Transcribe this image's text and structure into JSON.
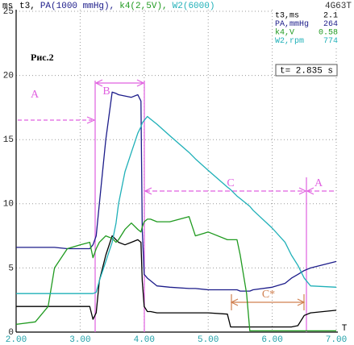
{
  "chart_data": {
    "type": "line",
    "y_label": "ms",
    "x_label": "T",
    "model": "4G63T",
    "figure_label": "Рис.2",
    "cursor": "t= 2.835 s",
    "annotations": [
      "A",
      "B",
      "C",
      "A",
      "C*"
    ],
    "readout": [
      {
        "label": "t3,ms",
        "value": 2.1
      },
      {
        "label": "PA,mmHg",
        "value": 264
      },
      {
        "label": "k4,V",
        "value": 0.58
      },
      {
        "label": "W2,rpm",
        "value": 774
      }
    ],
    "x": [
      2.0,
      2.3,
      2.5,
      2.6,
      2.8,
      3.0,
      3.15,
      3.2,
      3.25,
      3.3,
      3.4,
      3.5,
      3.56,
      3.6,
      3.7,
      3.8,
      3.9,
      3.95,
      3.97,
      4.0,
      4.05,
      4.1,
      4.2,
      4.4,
      4.7,
      4.8,
      5.0,
      5.3,
      5.35,
      5.45,
      5.5,
      5.6,
      5.65,
      5.7,
      6.0,
      6.2,
      6.3,
      6.4,
      6.5,
      6.6,
      7.0
    ],
    "series": [
      {
        "name": "t3,",
        "color": "#000000",
        "values": [
          2.0,
          2.0,
          2.0,
          2.0,
          2.0,
          2.0,
          2.0,
          1.0,
          1.5,
          4.0,
          6.0,
          7.5,
          7.2,
          7.0,
          6.8,
          7.0,
          7.2,
          7.0,
          4.0,
          2.0,
          1.6,
          1.6,
          1.5,
          1.5,
          1.5,
          1.5,
          1.5,
          1.4,
          0.4,
          0.4,
          0.4,
          0.4,
          0.4,
          0.4,
          0.4,
          0.4,
          0.4,
          0.5,
          1.3,
          1.5,
          1.7
        ]
      },
      {
        "name": "PA(1000 mmHg),",
        "color": "#1c1c8a",
        "values": [
          6.6,
          6.6,
          6.6,
          6.6,
          6.5,
          6.5,
          6.5,
          6.8,
          7.5,
          10.0,
          15.0,
          18.7,
          18.6,
          18.5,
          18.4,
          18.3,
          18.5,
          18.0,
          8.0,
          4.5,
          4.2,
          4.0,
          3.6,
          3.5,
          3.4,
          3.4,
          3.3,
          3.3,
          3.3,
          3.3,
          3.2,
          3.2,
          3.2,
          3.3,
          3.5,
          3.8,
          4.2,
          4.5,
          4.8,
          5.0,
          5.5
        ]
      },
      {
        "name": "k4(2,5V),",
        "color": "#1f9a1f",
        "values": [
          0.6,
          0.8,
          2.0,
          5.0,
          6.5,
          6.8,
          7.0,
          5.8,
          6.5,
          7.0,
          7.5,
          7.3,
          7.0,
          7.2,
          8.0,
          8.5,
          8.0,
          7.8,
          8.2,
          8.6,
          8.8,
          8.8,
          8.6,
          8.6,
          9.0,
          7.5,
          7.8,
          7.2,
          7.2,
          7.2,
          6.0,
          3.0,
          0.1,
          0.1,
          0.1,
          0.1,
          0.1,
          0.1,
          0.1,
          0.1,
          0.1
        ]
      },
      {
        "name": "W2(6000)",
        "color": "#1fb0b8",
        "values": [
          3.0,
          3.0,
          3.0,
          3.0,
          3.0,
          3.0,
          3.0,
          3.0,
          3.1,
          4.0,
          5.5,
          7.0,
          8.5,
          10.0,
          12.5,
          14.0,
          15.5,
          16.0,
          16.3,
          16.5,
          16.8,
          16.6,
          16.2,
          15.3,
          14.0,
          13.5,
          12.6,
          11.3,
          11.1,
          10.6,
          10.4,
          10.0,
          9.8,
          9.5,
          8.1,
          7.0,
          6.0,
          5.2,
          4.2,
          3.6,
          3.5
        ]
      }
    ],
    "xlim": [
      2,
      7
    ],
    "ylim": [
      0,
      25
    ],
    "xticks": [
      {
        "value": 2,
        "label": "2.00"
      },
      {
        "value": 3,
        "label": "3.00"
      },
      {
        "value": 4,
        "label": "4.00"
      },
      {
        "value": 5,
        "label": "5.00"
      },
      {
        "value": 6,
        "label": "6.00"
      },
      {
        "value": 7,
        "label": "7.00"
      }
    ],
    "yticks": [
      0,
      5,
      10,
      15,
      20,
      25
    ],
    "grid": true
  }
}
